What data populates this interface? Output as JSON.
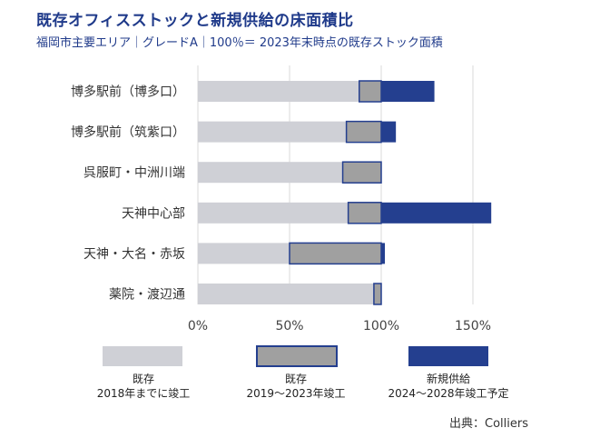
{
  "title": "既存オフィスストックと新規供給の床面積比",
  "subtitle": "福岡市主要エリア｜グレードA｜100％＝ 2023年末時点の既存ストック面積",
  "source": "出典：Colliers",
  "colors": {
    "existing_2018": "#cfd0d6",
    "existing_2019_2023": "#a0a0a0",
    "new_supply": "#243f8f",
    "outline": "#243f8f",
    "grid": "#d9d9d9"
  },
  "chart_data": {
    "type": "bar",
    "orientation": "horizontal",
    "stacked": true,
    "categories": [
      "博多駅前（博多口）",
      "博多駅前（筑紫口）",
      "呉服町・中洲川端",
      "天神中心部",
      "天神・大名・赤坂",
      "薬院・渡辺通"
    ],
    "series": [
      {
        "name": "既存\n2018年までに竣工",
        "key": "existing_2018",
        "values": [
          88,
          81,
          79,
          82,
          50,
          96
        ]
      },
      {
        "name": "既存\n2019〜2023年竣工",
        "key": "existing_2019_2023",
        "values": [
          12,
          19,
          21,
          18,
          50,
          4
        ]
      },
      {
        "name": "新規供給\n2024〜2028年竣工予定",
        "key": "new_supply",
        "values": [
          29,
          8,
          0,
          60,
          2,
          0
        ]
      }
    ],
    "xlim": [
      0,
      160
    ],
    "xticks": [
      0,
      50,
      100,
      150
    ],
    "xtick_labels": [
      "0%",
      "50%",
      "100%",
      "150%"
    ],
    "grid": "vertical",
    "legend": "bottom"
  }
}
